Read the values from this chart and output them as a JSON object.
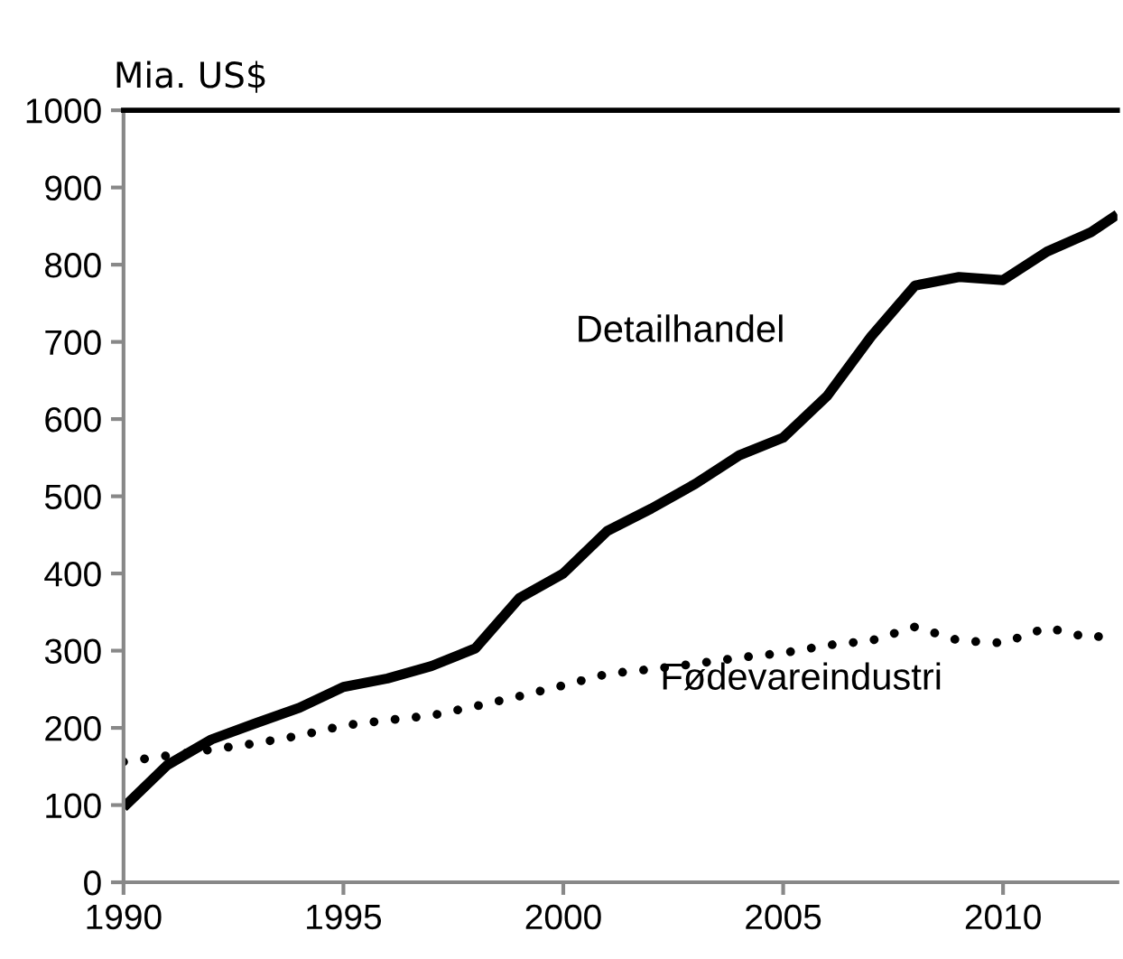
{
  "chart_data": {
    "type": "line",
    "ylabel": "Mia. US$",
    "xlim": [
      1990,
      2012.6
    ],
    "xticks": [
      1990,
      1995,
      2000,
      2005,
      2010
    ],
    "ylim": [
      0,
      1000
    ],
    "yticks": [
      0,
      100,
      200,
      300,
      400,
      500,
      600,
      700,
      800,
      900,
      1000
    ],
    "grid": false,
    "legend": false,
    "marker": "none",
    "series": [
      {
        "name": "Detailhandel",
        "color": "#000000",
        "line_style": "solid",
        "x": [
          1990,
          1991,
          1992,
          1993,
          1994,
          1995,
          1996,
          1997,
          1998,
          1999,
          2000,
          2001,
          2002,
          2003,
          2004,
          2005,
          2006,
          2007,
          2008,
          2009,
          2010,
          2011,
          2012,
          2012.6
        ],
        "values": [
          97,
          152,
          185,
          206,
          226,
          253,
          264,
          280,
          303,
          368,
          400,
          455,
          484,
          516,
          553,
          576,
          630,
          707,
          773,
          784,
          780,
          817,
          842,
          865
        ]
      },
      {
        "name": "Fødevareindustri",
        "color": "#000000",
        "line_style": "dotted",
        "x": [
          1990,
          1991,
          1992,
          1993,
          1994,
          1995,
          1996,
          1997,
          1998,
          1999,
          2000,
          2001,
          2002,
          2003,
          2004,
          2005,
          2006,
          2007,
          2008,
          2009,
          2010,
          2011,
          2012,
          2012.6
        ],
        "values": [
          156,
          164,
          172,
          180,
          190,
          203,
          210,
          216,
          228,
          241,
          255,
          270,
          276,
          283,
          291,
          297,
          307,
          313,
          331,
          313,
          310,
          330,
          316,
          324
        ]
      }
    ]
  }
}
